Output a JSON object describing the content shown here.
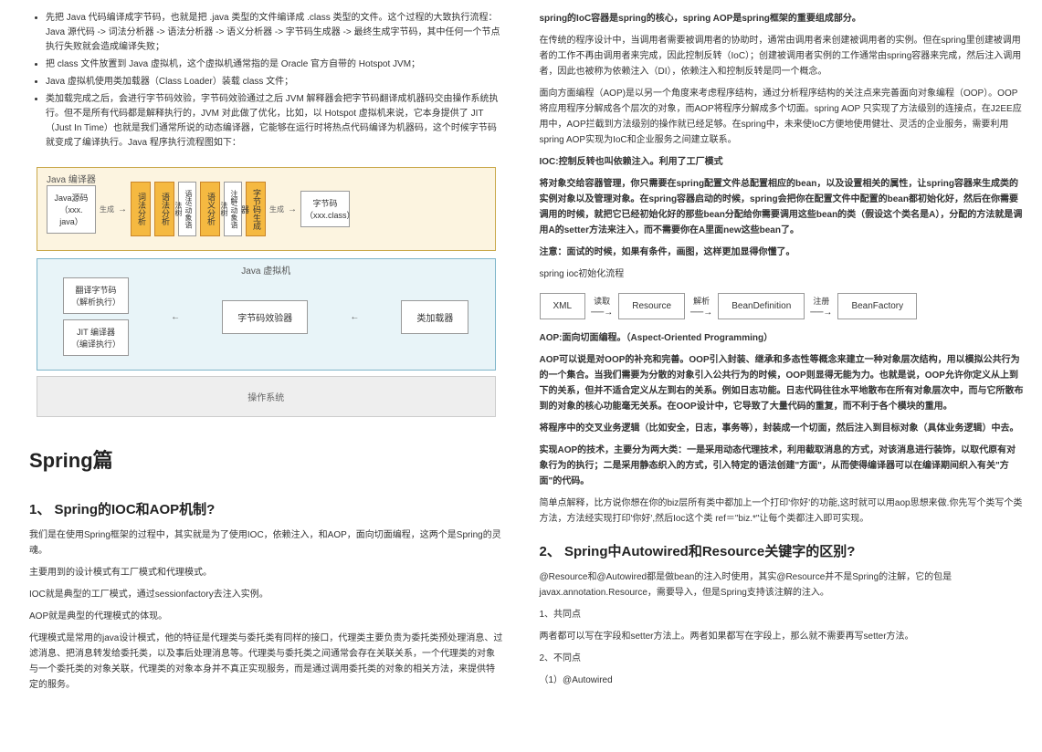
{
  "left": {
    "bullets": [
      "先把 Java 代码编译成字节码，也就是把 .java 类型的文件编译成 .class 类型的文件。这个过程的大致执行流程：Java 源代码 -> 词法分析器 -> 语法分析器 -> 语义分析器 -> 字节码生成器 -> 最终生成字节码，其中任何一个节点执行失败就会造成编译失败；",
      "把 class 文件放置到 Java 虚拟机，这个虚拟机通常指的是 Oracle 官方自带的 Hotspot JVM；",
      "Java 虚拟机使用类加载器（Class Loader）装载 class 文件；",
      "类加载完成之后，会进行字节码效验，字节码效验通过之后 JVM 解释器会把字节码翻译成机器码交由操作系统执行。但不是所有代码都是解释执行的，JVM 对此做了优化，比如，以 Hotspot 虚拟机来说，它本身提供了 JIT（Just In Time）也就是我们通常所说的动态编译器，它能够在运行时将热点代码编译为机器码，这个时候字节码就变成了编译执行。Java 程序执行流程图如下："
    ],
    "diagram1": {
      "compiler_title": "Java 编译器",
      "src": "Java源码\n（xxx. java）",
      "gen1": "生成",
      "stages": [
        "词法分析",
        "语法分析",
        "语法/动象语法树",
        "语义分析",
        "注解/动象语法树",
        "字节码生成器"
      ],
      "gen2": "生成",
      "out": "字节码\n（xxx.class）"
    },
    "diagram2": {
      "vm_title": "Java 虚拟机",
      "left1": "翻译字节码\n（解析执行）",
      "left2": "JIT 编译器\n（编译执行）",
      "mid1": "字节码效验器",
      "mid2": "类加载器",
      "os": "操作系统"
    },
    "h1": "Spring篇",
    "h2_1": "1、 Spring的IOC和AOP机制?",
    "p1": "我们是在使用Spring框架的过程中，其实就是为了使用IOC，依赖注入，和AOP，面向切面编程，这两个是Spring的灵魂。",
    "p2": "主要用到的设计模式有工厂模式和代理模式。",
    "p3": "IOC就是典型的工厂模式，通过sessionfactory去注入实例。",
    "p4": "AOP就是典型的代理模式的体现。",
    "p5": "代理模式是常用的java设计模式，他的特征是代理类与委托类有同样的接口，代理类主要负责为委托类预处理消息、过滤消息、把消息转发给委托类，以及事后处理消息等。代理类与委托类之间通常会存在关联关系，一个代理类的对象与一个委托类的对象关联，代理类的对象本身并不真正实现服务，而是通过调用委托类的对象的相关方法，来提供特定的服务。"
  },
  "right": {
    "p_bold1": "spring的IoC容器是spring的核心，spring AOP是spring框架的重要组成部分。",
    "p1": "在传统的程序设计中，当调用者需要被调用者的协助时，通常由调用者来创建被调用者的实例。但在spring里创建被调用者的工作不再由调用者来完成，因此控制反转（IoC）；创建被调用者实例的工作通常由spring容器来完成，然后注入调用者，因此也被称为依赖注入（DI），依赖注入和控制反转是同一个概念。",
    "p2": "面向方面编程（AOP)是以另一个角度来考虑程序结构，通过分析程序结构的关注点来完善面向对象编程（OOP）。OOP将应用程序分解成各个层次的对象，而AOP将程序分解成多个切面。spring AOP 只实现了方法级别的连接点，在J2EE应用中，AOP拦截到方法级别的操作就已经足够。在spring中，未来使IoC方便地使用健壮、灵活的企业服务，需要利用spring AOP实现为IoC和企业服务之间建立联系。",
    "p_bold2": "IOC:控制反转也叫依赖注入。利用了工厂模式",
    "p_bold3": "将对象交给容器管理，你只需要在spring配置文件总配置相应的bean，以及设置相关的属性，让spring容器来生成类的实例对象以及管理对象。在spring容器启动的时候，spring会把你在配置文件中配置的bean都初始化好，然后在你需要调用的时候，就把它已经初始化好的那些bean分配给你需要调用这些bean的类（假设这个类名是A），分配的方法就是调用A的setter方法来注入，而不需要你在A里面new这些bean了。",
    "p_bold4": "注意：面试的时候，如果有条件，画图，这样更加显得你懂了。",
    "p3": "spring ioc初始化流程",
    "flow": {
      "boxes": [
        "XML",
        "Resource",
        "BeanDefinition",
        "BeanFactory"
      ],
      "labels": [
        "读取",
        "解析",
        "注册"
      ]
    },
    "p_bold5": "AOP:面向切面编程。（Aspect-Oriented Programming）",
    "p_bold6": "AOP可以说是对OOP的补充和完善。OOP引入封装、继承和多态性等概念来建立一种对象层次结构，用以模拟公共行为的一个集合。当我们需要为分散的对象引入公共行为的时候，OOP则显得无能为力。也就是说，OOP允许你定义从上到下的关系，但并不适合定义从左到右的关系。例如日志功能。日志代码往往水平地散布在所有对象层次中，而与它所散布到的对象的核心功能毫无关系。在OOP设计中，它导致了大量代码的重复，而不利于各个模块的重用。",
    "p_bold7": "将程序中的交叉业务逻辑（比如安全，日志，事务等），封装成一个切面，然后注入到目标对象（具体业务逻辑）中去。",
    "p_bold8": "实现AOP的技术，主要分为两大类：一是采用动态代理技术，利用截取消息的方式，对该消息进行装饰，以取代原有对象行为的执行；二是采用静态织入的方式，引入特定的语法创建\"方面\"，从而使得编译器可以在编译期间织入有关\"方面\"的代码。",
    "p4": "简单点解释，比方说你想在你的biz层所有类中都加上一个打印'你好'的功能,这时就可以用aop思想来做.你先写个类写个类方法，方法经实现打印'你好',然后Ioc这个类 ref＝\"biz.*\"让每个类都注入即可实现。",
    "h2_2": "2、 Spring中Autowired和Resource关键字的区别?",
    "p5": "@Resource和@Autowired都是做bean的注入时使用，其实@Resource并不是Spring的注解，它的包是javax.annotation.Resource，需要导入，但是Spring支持该注解的注入。",
    "p6": "1、共同点",
    "p7": "两者都可以写在字段和setter方法上。两者如果都写在字段上，那么就不需要再写setter方法。",
    "p8": "2、不同点",
    "p9": "（1）@Autowired"
  }
}
